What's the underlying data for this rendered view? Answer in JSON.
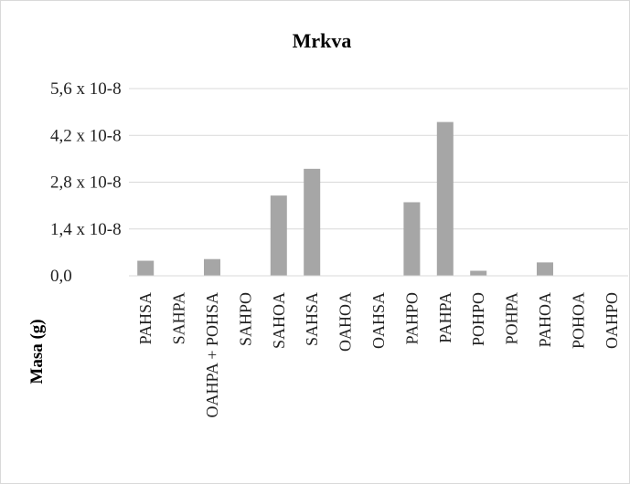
{
  "chart_data": {
    "type": "bar",
    "title": "Mrkva",
    "ylabel": "Masa (g)",
    "xlabel": "",
    "ytick_labels": [
      {
        "value": 0,
        "label": "0,0"
      },
      {
        "value": 1.4e-08,
        "label": "1,4 x 10-8"
      },
      {
        "value": 2.8e-08,
        "label": "2,8 x 10-8"
      },
      {
        "value": 4.2e-08,
        "label": "4,2 x 10-8"
      },
      {
        "value": 5.6e-08,
        "label": "5,6 x 10-8"
      }
    ],
    "ylim": [
      0,
      5.6e-08
    ],
    "grid": true,
    "bar_color": "#a6a6a6",
    "grid_color": "#d9d9d9",
    "categories": [
      "PAHSA",
      "SAHPA",
      "OAHPA + POHSA",
      "SAHPO",
      "SAHOA",
      "SAHSA",
      "OAHOA",
      "OAHSA",
      "PAHPO",
      "PAHPA",
      "POHPO",
      "POHPA",
      "PAHOA",
      "POHOA",
      "OAHPO"
    ],
    "values": [
      4.5e-09,
      0,
      5e-09,
      0,
      2.4e-08,
      3.2e-08,
      0,
      0,
      2.2e-08,
      4.6e-08,
      1.5e-09,
      0,
      4e-09,
      0,
      0
    ]
  }
}
